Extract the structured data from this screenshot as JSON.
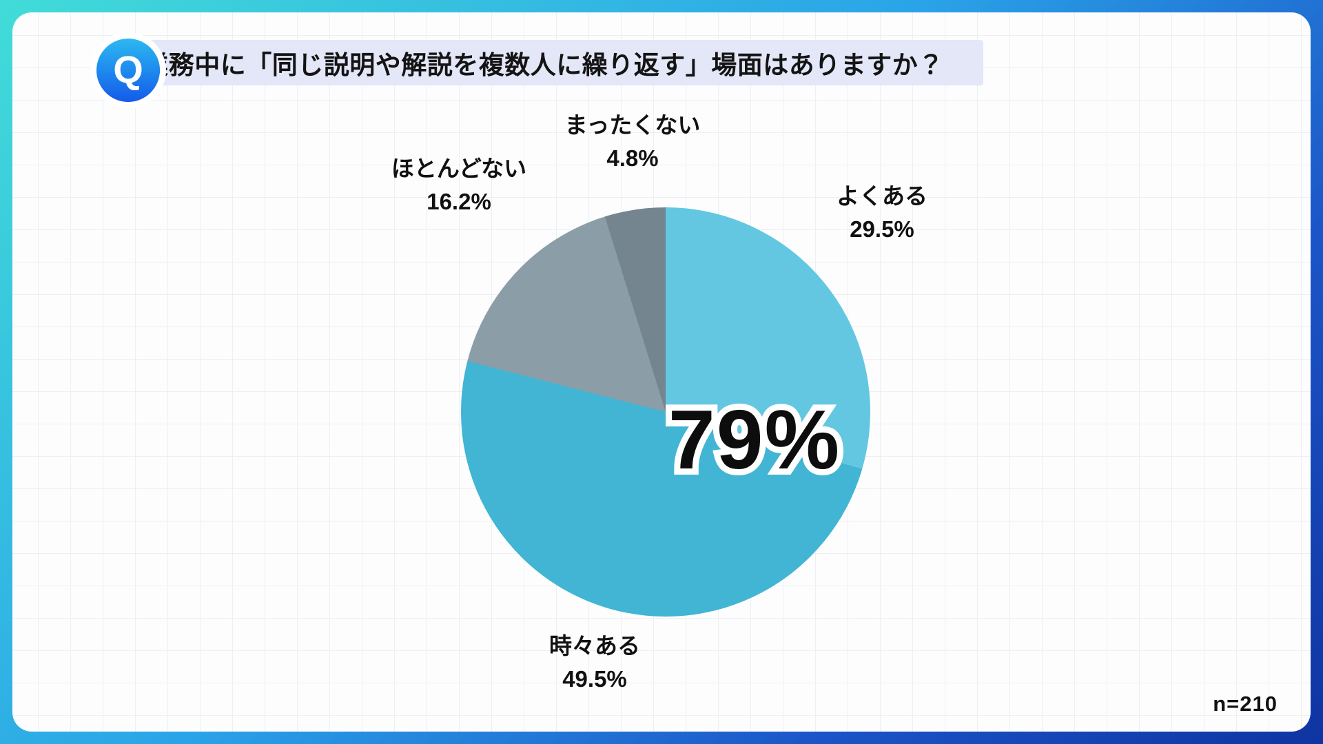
{
  "header": {
    "badge_letter": "Q",
    "title": "業務中に「同じ説明や解説を複数人に繰り返す」場面はありますか？"
  },
  "footer": {
    "sample_size_label": "n=210"
  },
  "chart_data": {
    "type": "pie",
    "title": "業務中に「同じ説明や解説を複数人に繰り返す」場面はありますか？",
    "unit": "%",
    "start_angle_deg": 0,
    "direction": "clockwise",
    "slices": [
      {
        "label": "よくある",
        "value": 29.5,
        "pct_label": "29.5%",
        "color": "#63c7e2"
      },
      {
        "label": "時々ある",
        "value": 49.5,
        "pct_label": "49.5%",
        "color": "#41b5d3"
      },
      {
        "label": "ほとんどない",
        "value": 16.2,
        "pct_label": "16.2%",
        "color": "#8b9da6"
      },
      {
        "label": "まったくない",
        "value": 4.8,
        "pct_label": "4.8%",
        "color": "#75858f"
      }
    ],
    "center_callout": "79%",
    "center_callout_meaning": "よくある + 時々ある",
    "sample_size": 210,
    "legend_position": "around-pie",
    "grid": true
  },
  "colors": {
    "frame_gradient_start": "#41dcd8",
    "frame_gradient_end": "#0f34a2",
    "title_bar_bg": "#e4e7f8",
    "badge_gradient_top": "#2cb9f0",
    "badge_gradient_bottom": "#155ae9",
    "canvas_bg": "#fdfdfe",
    "grid_line": "#edeff3",
    "text": "#111111"
  }
}
